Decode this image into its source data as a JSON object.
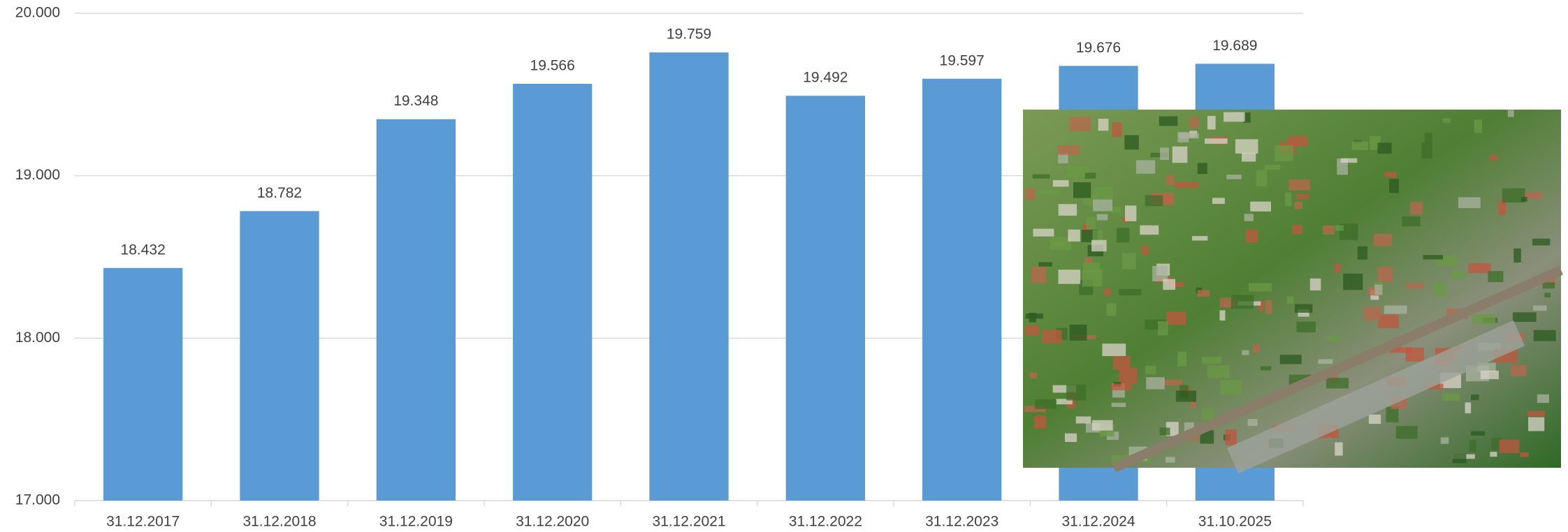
{
  "chart_data": {
    "type": "bar",
    "categories": [
      "31.12.2017",
      "31.12.2018",
      "31.12.2019",
      "31.12.2020",
      "31.12.2021",
      "31.12.2022",
      "31.12.2023",
      "31.12.2024",
      "31.10.2025"
    ],
    "values": [
      18432,
      18782,
      19348,
      19566,
      19759,
      19492,
      19597,
      19676,
      19689
    ],
    "value_labels": [
      "18.432",
      "18.782",
      "19.348",
      "19.566",
      "19.759",
      "19.492",
      "19.597",
      "19.676",
      "19.689"
    ],
    "color": "#5b9bd5",
    "ylim": [
      17000,
      20000
    ],
    "yticks": [
      {
        "value": 17000,
        "label": "17.000"
      },
      {
        "value": 18000,
        "label": "18.000"
      },
      {
        "value": 19000,
        "label": "19.000"
      },
      {
        "value": 20000,
        "label": "20.000"
      }
    ],
    "grid": true
  }
}
